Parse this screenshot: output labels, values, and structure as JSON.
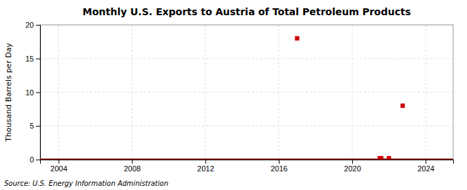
{
  "chart_data": {
    "type": "scatter",
    "title": "Monthly U.S. Exports to Austria of Total Petroleum Products",
    "ylabel": "Thousand Barrels per Day",
    "source": "Source: U.S. Energy Information Administration",
    "xlim": [
      2003.0,
      2025.5
    ],
    "xticks": [
      2004,
      2008,
      2012,
      2016,
      2020,
      2024
    ],
    "ylim": [
      0,
      20
    ],
    "yticks": [
      0,
      5,
      10,
      15,
      20
    ],
    "grid": true,
    "series": [
      {
        "type": "hline",
        "color": "#8b0000",
        "values": [
          0
        ]
      },
      {
        "type": "scatter",
        "marker": "square",
        "color": "#cc0000",
        "x": [
          2017.0,
          2022.75
        ],
        "values": [
          18,
          8
        ]
      },
      {
        "type": "scatter",
        "marker": "square",
        "color": "#cc0000",
        "x": [
          2021.5,
          2021.583,
          2022.0
        ],
        "values": [
          0.2,
          0.2,
          0.2
        ]
      }
    ]
  }
}
